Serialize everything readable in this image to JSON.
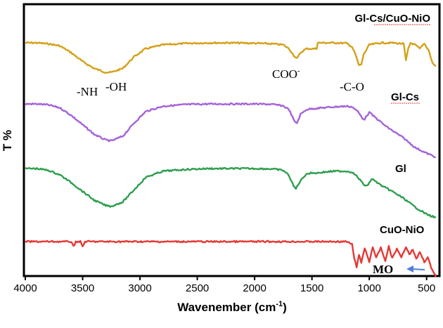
{
  "chart_data": {
    "type": "line",
    "title": "",
    "xlabel": "Wavenember (cm",
    "xlabel_sup": "-1",
    "xlabel_close": ")",
    "ylabel": "T %",
    "xlim": [
      4000,
      400
    ],
    "x_reversed": true,
    "x_ticks": [
      "4000",
      "3500",
      "3000",
      "2500",
      "2000",
      "1500",
      "1000",
      "500"
    ],
    "x_tick_values": [
      4000,
      3500,
      3000,
      2500,
      2000,
      1500,
      1000,
      500
    ],
    "y_ticks_shown": false,
    "grid": false,
    "series": [
      {
        "name": "Gl-Cs/CuO-NiO",
        "color": "#d4a017",
        "points": [
          [
            4000,
            0.0
          ],
          [
            3900,
            0.0
          ],
          [
            3800,
            0.05
          ],
          [
            3700,
            0.15
          ],
          [
            3600,
            0.5
          ],
          [
            3500,
            0.95
          ],
          [
            3400,
            1.3
          ],
          [
            3300,
            1.5
          ],
          [
            3250,
            1.5
          ],
          [
            3150,
            1.3
          ],
          [
            3050,
            0.7
          ],
          [
            2950,
            0.3
          ],
          [
            2800,
            0.1
          ],
          [
            2600,
            0.03
          ],
          [
            2400,
            0.0
          ],
          [
            2200,
            0.0
          ],
          [
            2000,
            0.02
          ],
          [
            1850,
            0.05
          ],
          [
            1750,
            0.1
          ],
          [
            1700,
            0.3
          ],
          [
            1650,
            0.7
          ],
          [
            1630,
            0.8
          ],
          [
            1600,
            0.5
          ],
          [
            1550,
            0.3
          ],
          [
            1500,
            0.3
          ],
          [
            1460,
            0.3
          ],
          [
            1450,
            0.0
          ],
          [
            1400,
            0.0
          ],
          [
            1300,
            0.0
          ],
          [
            1200,
            0.02
          ],
          [
            1150,
            0.2
          ],
          [
            1120,
            0.6
          ],
          [
            1090,
            1.15
          ],
          [
            1070,
            1.1
          ],
          [
            1050,
            0.6
          ],
          [
            1000,
            0.1
          ],
          [
            900,
            0.0
          ],
          [
            800,
            0.0
          ],
          [
            700,
            0.05
          ],
          [
            680,
            0.9
          ],
          [
            660,
            0.3
          ],
          [
            640,
            0.0
          ],
          [
            600,
            0.1
          ],
          [
            560,
            0.3
          ],
          [
            520,
            0.05
          ],
          [
            480,
            0.4
          ],
          [
            450,
            1.0
          ],
          [
            420,
            1.2
          ]
        ]
      },
      {
        "name": "Gl-Cs",
        "color": "#a463d8",
        "points": [
          [
            4000,
            0.0
          ],
          [
            3900,
            0.0
          ],
          [
            3800,
            0.05
          ],
          [
            3700,
            0.2
          ],
          [
            3600,
            0.6
          ],
          [
            3500,
            1.1
          ],
          [
            3400,
            1.6
          ],
          [
            3300,
            1.9
          ],
          [
            3250,
            1.95
          ],
          [
            3150,
            1.7
          ],
          [
            3050,
            1.0
          ],
          [
            2950,
            0.4
          ],
          [
            2800,
            0.12
          ],
          [
            2600,
            0.03
          ],
          [
            2400,
            0.0
          ],
          [
            2200,
            0.0
          ],
          [
            2000,
            0.0
          ],
          [
            1850,
            0.02
          ],
          [
            1750,
            0.1
          ],
          [
            1700,
            0.3
          ],
          [
            1650,
            0.95
          ],
          [
            1630,
            1.0
          ],
          [
            1600,
            0.55
          ],
          [
            1550,
            0.3
          ],
          [
            1500,
            0.25
          ],
          [
            1400,
            0.2
          ],
          [
            1300,
            0.15
          ],
          [
            1200,
            0.12
          ],
          [
            1150,
            0.15
          ],
          [
            1100,
            0.4
          ],
          [
            1060,
            0.75
          ],
          [
            1040,
            0.8
          ],
          [
            1020,
            0.6
          ],
          [
            1000,
            0.45
          ],
          [
            950,
            0.7
          ],
          [
            900,
            0.95
          ],
          [
            850,
            1.2
          ],
          [
            800,
            1.4
          ],
          [
            700,
            1.8
          ],
          [
            600,
            2.3
          ],
          [
            500,
            2.6
          ],
          [
            420,
            2.8
          ]
        ]
      },
      {
        "name": "Gl",
        "color": "#2e9e4f",
        "points": [
          [
            4000,
            0.0
          ],
          [
            3900,
            0.0
          ],
          [
            3800,
            0.1
          ],
          [
            3700,
            0.35
          ],
          [
            3600,
            0.8
          ],
          [
            3500,
            1.3
          ],
          [
            3400,
            1.8
          ],
          [
            3300,
            2.1
          ],
          [
            3250,
            2.15
          ],
          [
            3150,
            1.9
          ],
          [
            3050,
            1.2
          ],
          [
            2950,
            0.5
          ],
          [
            2800,
            0.15
          ],
          [
            2600,
            0.05
          ],
          [
            2400,
            0.0
          ],
          [
            2200,
            0.0
          ],
          [
            2000,
            0.0
          ],
          [
            1850,
            0.02
          ],
          [
            1750,
            0.1
          ],
          [
            1700,
            0.4
          ],
          [
            1660,
            1.0
          ],
          [
            1640,
            1.15
          ],
          [
            1620,
            0.9
          ],
          [
            1600,
            0.7
          ],
          [
            1550,
            0.3
          ],
          [
            1500,
            0.25
          ],
          [
            1450,
            0.25
          ],
          [
            1400,
            0.2
          ],
          [
            1300,
            0.15
          ],
          [
            1200,
            0.15
          ],
          [
            1150,
            0.2
          ],
          [
            1100,
            0.5
          ],
          [
            1050,
            0.9
          ],
          [
            1020,
            1.0
          ],
          [
            1000,
            0.8
          ],
          [
            980,
            0.6
          ],
          [
            950,
            0.7
          ],
          [
            900,
            0.95
          ],
          [
            800,
            1.3
          ],
          [
            700,
            1.7
          ],
          [
            600,
            2.2
          ],
          [
            500,
            2.6
          ],
          [
            420,
            2.8
          ]
        ]
      },
      {
        "name": "CuO-NiO",
        "color": "#e53935",
        "points": [
          [
            4000,
            0.0
          ],
          [
            3700,
            0.0
          ],
          [
            3600,
            0.0
          ],
          [
            3580,
            0.4
          ],
          [
            3560,
            0.0
          ],
          [
            3520,
            0.0
          ],
          [
            3500,
            0.4
          ],
          [
            3480,
            0.0
          ],
          [
            3300,
            0.0
          ],
          [
            3000,
            0.0
          ],
          [
            2500,
            0.0
          ],
          [
            2000,
            0.0
          ],
          [
            1500,
            0.0
          ],
          [
            1300,
            0.0
          ],
          [
            1200,
            0.0
          ],
          [
            1150,
            0.2
          ],
          [
            1130,
            1.4
          ],
          [
            1110,
            2.0
          ],
          [
            1090,
            1.0
          ],
          [
            1070,
            1.7
          ],
          [
            1040,
            0.5
          ],
          [
            1000,
            1.6
          ],
          [
            970,
            0.4
          ],
          [
            940,
            1.3
          ],
          [
            900,
            0.5
          ],
          [
            860,
            1.5
          ],
          [
            830,
            0.4
          ],
          [
            800,
            1.3
          ],
          [
            760,
            0.6
          ],
          [
            720,
            1.2
          ],
          [
            680,
            0.4
          ],
          [
            650,
            1.0
          ],
          [
            620,
            0.6
          ],
          [
            590,
            1.4
          ],
          [
            560,
            0.8
          ],
          [
            520,
            1.6
          ],
          [
            490,
            1.2
          ],
          [
            460,
            2.1
          ],
          [
            430,
            2.6
          ],
          [
            420,
            2.8
          ]
        ]
      }
    ],
    "annotations": [
      {
        "text": "-NH",
        "style": "normal"
      },
      {
        "text": "-OH",
        "style": "normal"
      },
      {
        "text": "COO",
        "sup": "-",
        "style": "normal"
      },
      {
        "text": "-C-O",
        "style": "normal"
      },
      {
        "text": "MO",
        "style": "bold"
      }
    ],
    "marker_color": "#4f7fd9"
  }
}
